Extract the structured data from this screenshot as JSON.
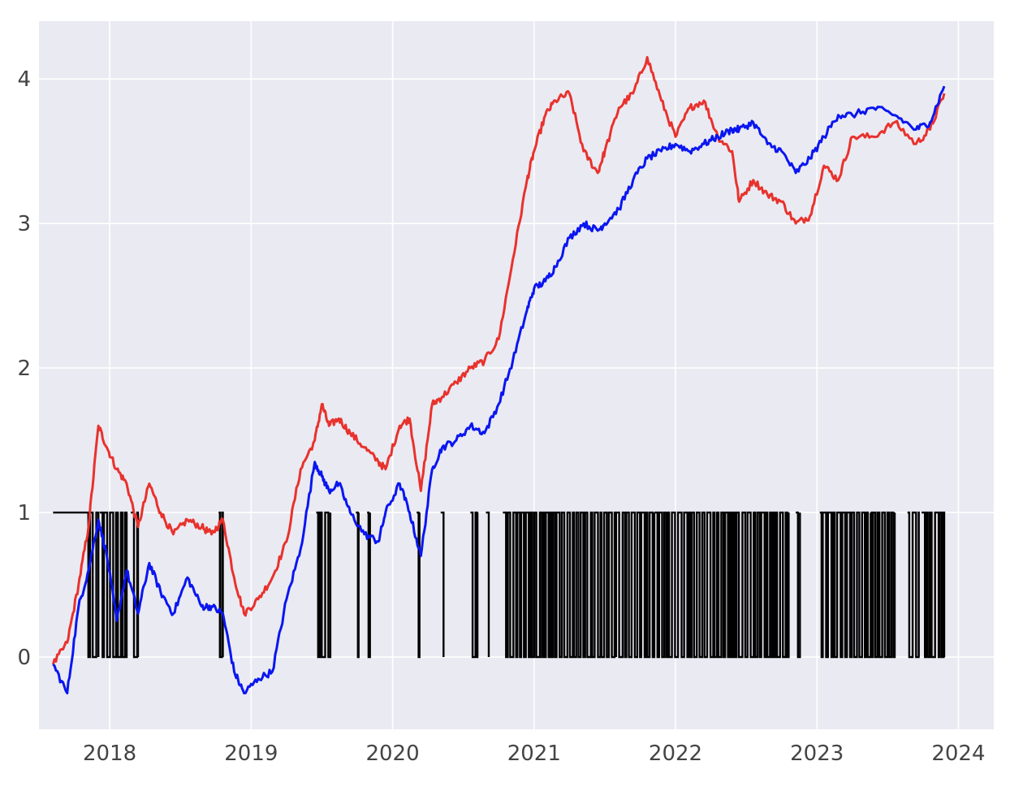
{
  "chart_data": {
    "type": "line",
    "title": "",
    "xlabel": "",
    "ylabel": "",
    "xlim": [
      2017.5,
      2024.25
    ],
    "ylim": [
      -0.5,
      4.4
    ],
    "grid": true,
    "x_ticks": [
      {
        "value": 2018,
        "label": "2018"
      },
      {
        "value": 2019,
        "label": "2019"
      },
      {
        "value": 2020,
        "label": "2020"
      },
      {
        "value": 2021,
        "label": "2021"
      },
      {
        "value": 2022,
        "label": "2022"
      },
      {
        "value": 2023,
        "label": "2023"
      },
      {
        "value": 2024,
        "label": "2024"
      }
    ],
    "y_ticks": [
      {
        "value": 0,
        "label": "0"
      },
      {
        "value": 1,
        "label": "1"
      },
      {
        "value": 2,
        "label": "2"
      },
      {
        "value": 3,
        "label": "3"
      },
      {
        "value": 4,
        "label": "4"
      }
    ],
    "series": [
      {
        "color": "#e8322d",
        "x": [
          2017.6,
          2017.7,
          2017.78,
          2017.85,
          2017.92,
          2017.98,
          2018.05,
          2018.12,
          2018.2,
          2018.28,
          2018.36,
          2018.45,
          2018.55,
          2018.65,
          2018.72,
          2018.8,
          2018.88,
          2018.95,
          2019.05,
          2019.15,
          2019.25,
          2019.35,
          2019.45,
          2019.5,
          2019.55,
          2019.62,
          2019.7,
          2019.8,
          2019.9,
          2019.95,
          2020.05,
          2020.12,
          2020.2,
          2020.28,
          2020.35,
          2020.45,
          2020.55,
          2020.65,
          2020.75,
          2020.85,
          2020.95,
          2021.0,
          2021.08,
          2021.15,
          2021.25,
          2021.35,
          2021.45,
          2021.5,
          2021.6,
          2021.7,
          2021.8,
          2021.9,
          2022.0,
          2022.1,
          2022.2,
          2022.3,
          2022.4,
          2022.45,
          2022.55,
          2022.65,
          2022.75,
          2022.85,
          2022.95,
          2023.05,
          2023.15,
          2023.25,
          2023.4,
          2023.55,
          2023.7,
          2023.8,
          2023.9
        ],
        "y": [
          -0.05,
          0.1,
          0.5,
          0.9,
          1.6,
          1.45,
          1.3,
          1.2,
          0.9,
          1.2,
          1.0,
          0.85,
          0.95,
          0.9,
          0.85,
          0.95,
          0.55,
          0.3,
          0.4,
          0.55,
          0.8,
          1.3,
          1.5,
          1.75,
          1.6,
          1.65,
          1.55,
          1.45,
          1.35,
          1.3,
          1.6,
          1.65,
          1.15,
          1.75,
          1.8,
          1.9,
          2.0,
          2.05,
          2.2,
          2.75,
          3.3,
          3.5,
          3.75,
          3.85,
          3.9,
          3.5,
          3.35,
          3.5,
          3.8,
          3.9,
          4.15,
          3.85,
          3.6,
          3.8,
          3.85,
          3.6,
          3.5,
          3.15,
          3.3,
          3.2,
          3.15,
          3.0,
          3.05,
          3.4,
          3.3,
          3.6,
          3.6,
          3.7,
          3.55,
          3.65,
          3.9
        ]
      },
      {
        "color": "#0a16f0",
        "x": [
          2017.6,
          2017.7,
          2017.78,
          2017.85,
          2017.92,
          2017.98,
          2018.05,
          2018.12,
          2018.2,
          2018.28,
          2018.36,
          2018.45,
          2018.55,
          2018.65,
          2018.72,
          2018.8,
          2018.88,
          2018.95,
          2019.05,
          2019.15,
          2019.25,
          2019.35,
          2019.45,
          2019.5,
          2019.55,
          2019.62,
          2019.7,
          2019.8,
          2019.9,
          2019.95,
          2020.05,
          2020.12,
          2020.2,
          2020.28,
          2020.35,
          2020.45,
          2020.55,
          2020.65,
          2020.75,
          2020.85,
          2020.95,
          2021.0,
          2021.08,
          2021.15,
          2021.25,
          2021.35,
          2021.45,
          2021.5,
          2021.6,
          2021.7,
          2021.8,
          2021.9,
          2022.0,
          2022.1,
          2022.2,
          2022.3,
          2022.4,
          2022.45,
          2022.55,
          2022.65,
          2022.75,
          2022.85,
          2022.95,
          2023.05,
          2023.15,
          2023.25,
          2023.4,
          2023.55,
          2023.7,
          2023.8,
          2023.9
        ],
        "y": [
          -0.05,
          -0.25,
          0.35,
          0.6,
          0.95,
          0.7,
          0.25,
          0.6,
          0.3,
          0.65,
          0.45,
          0.3,
          0.55,
          0.35,
          0.35,
          0.3,
          -0.1,
          -0.25,
          -0.15,
          -0.1,
          0.4,
          0.75,
          1.35,
          1.25,
          1.15,
          1.2,
          1.0,
          0.85,
          0.8,
          1.0,
          1.2,
          1.0,
          0.7,
          1.3,
          1.45,
          1.5,
          1.6,
          1.55,
          1.75,
          2.05,
          2.4,
          2.55,
          2.6,
          2.7,
          2.9,
          3.0,
          2.95,
          3.0,
          3.1,
          3.3,
          3.45,
          3.5,
          3.55,
          3.5,
          3.55,
          3.6,
          3.65,
          3.65,
          3.7,
          3.55,
          3.5,
          3.35,
          3.45,
          3.6,
          3.75,
          3.75,
          3.8,
          3.75,
          3.65,
          3.7,
          3.95
        ]
      }
    ],
    "signal": {
      "color": "#000000",
      "baseline_value": 0,
      "high_value": 1,
      "flat_segments": [
        [
          2017.6,
          2017.83
        ]
      ],
      "toggle_spans": [
        [
          2017.83,
          2017.92
        ],
        [
          2017.93,
          2018.12
        ],
        [
          2018.15,
          2018.2
        ],
        [
          2018.77,
          2018.8
        ],
        [
          2019.46,
          2019.56
        ],
        [
          2019.74,
          2019.76
        ],
        [
          2019.82,
          2019.84
        ],
        [
          2020.17,
          2020.19
        ],
        [
          2020.34,
          2020.36
        ],
        [
          2020.55,
          2020.6
        ],
        [
          2020.66,
          2020.68
        ],
        [
          2020.78,
          2021.58
        ],
        [
          2021.58,
          2021.85
        ],
        [
          2021.85,
          2022.8
        ],
        [
          2022.85,
          2022.88
        ],
        [
          2023.02,
          2023.38
        ],
        [
          2023.38,
          2023.55
        ],
        [
          2023.64,
          2023.72
        ],
        [
          2023.74,
          2023.9
        ]
      ]
    }
  }
}
